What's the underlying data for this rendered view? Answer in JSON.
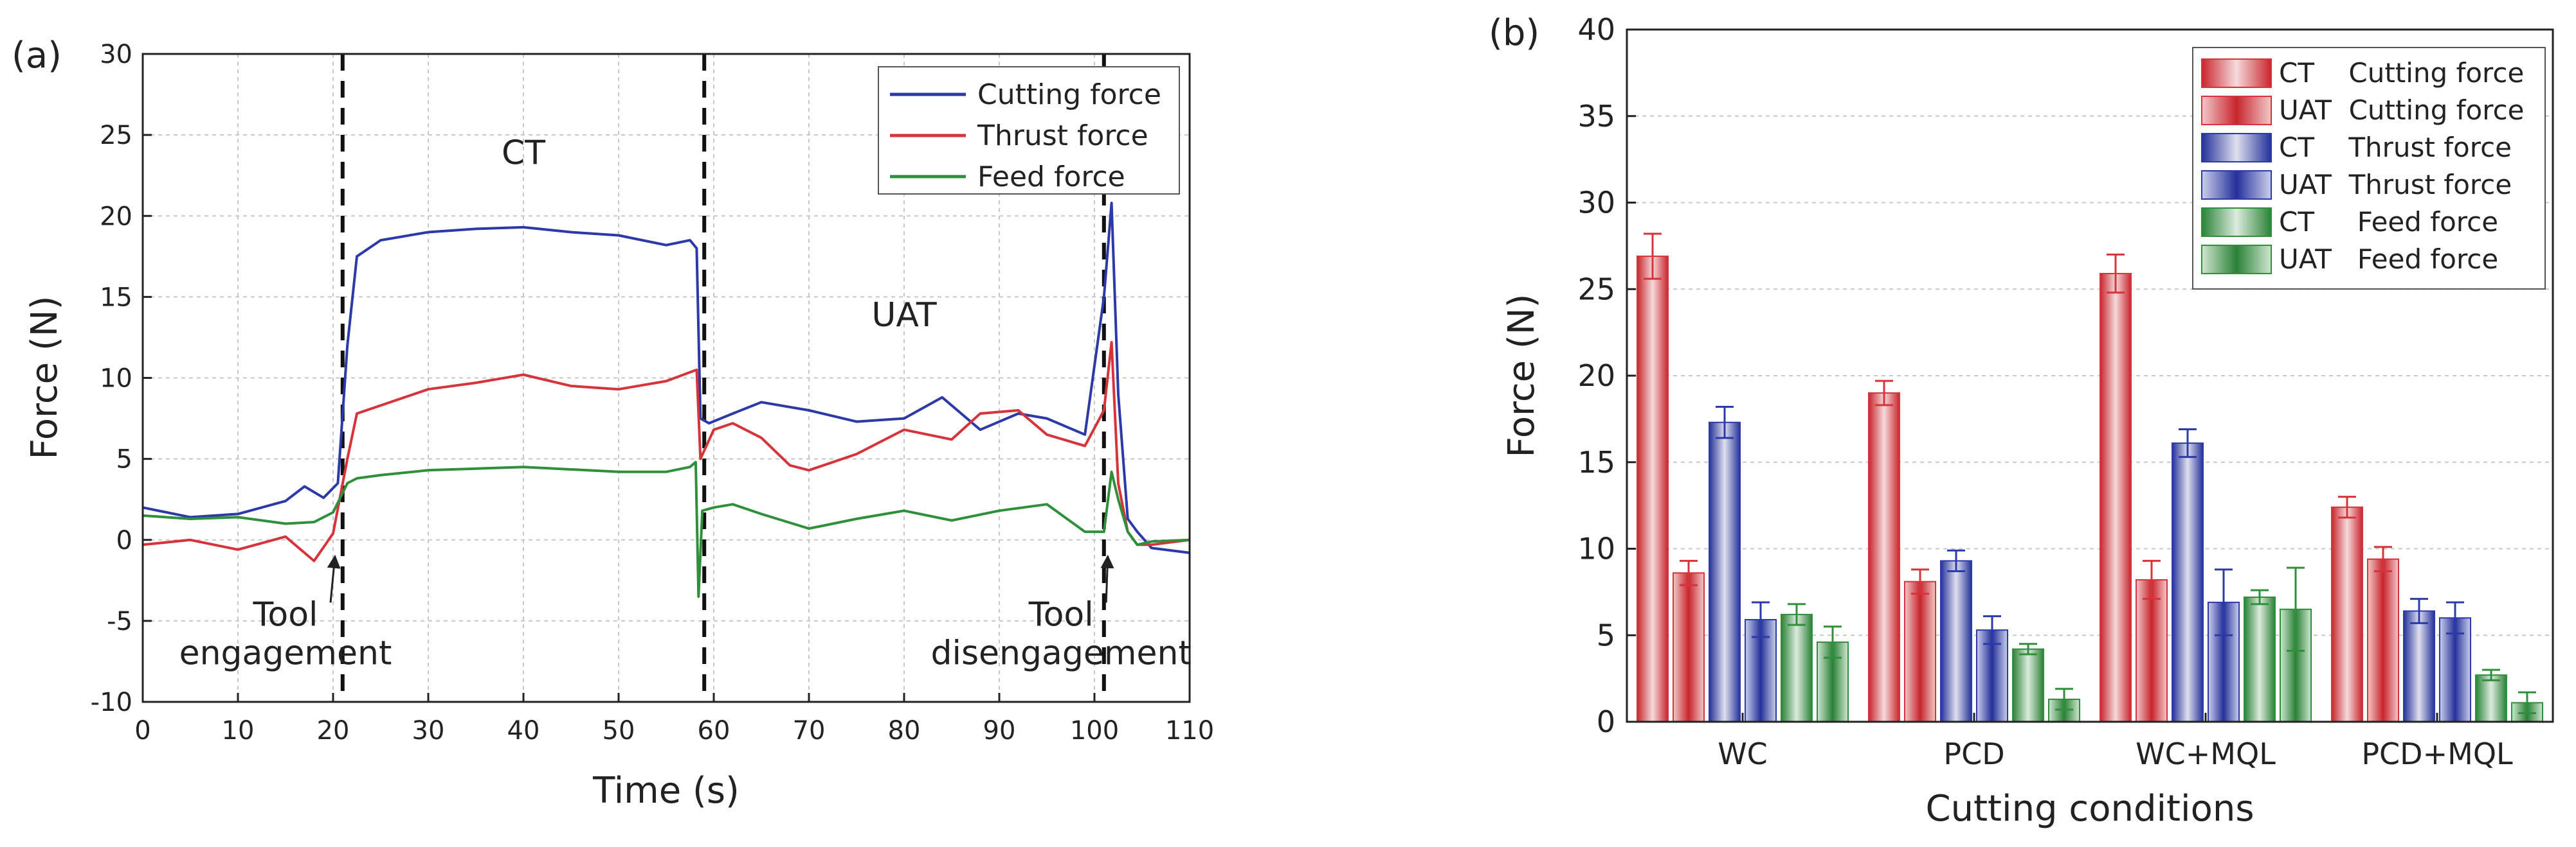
{
  "chart_data": [
    {
      "type": "line",
      "panel_label": "(a)",
      "xlabel": "Time (s)",
      "ylabel": "Force (N)",
      "xlim": [
        0,
        110
      ],
      "ylim": [
        -10,
        30
      ],
      "xticks": [
        0,
        10,
        20,
        30,
        40,
        50,
        60,
        70,
        80,
        90,
        100,
        110
      ],
      "yticks": [
        -10,
        -5,
        0,
        5,
        10,
        15,
        20,
        25,
        30
      ],
      "grid": true,
      "legend_position": "top-right",
      "series": [
        {
          "name": "Cutting force",
          "color": "#2b3aa8",
          "x": [
            0,
            5,
            10,
            15,
            17,
            19,
            20.5,
            21.5,
            22.5,
            25,
            30,
            35,
            40,
            45,
            50,
            55,
            57.5,
            58.2,
            58.6,
            59.5,
            62,
            65,
            70,
            75,
            80,
            84,
            88,
            92,
            95,
            99,
            101,
            101.8,
            102.5,
            103.5,
            104.5,
            106,
            110
          ],
          "y": [
            2,
            1.4,
            1.6,
            2.4,
            3.3,
            2.6,
            3.5,
            12,
            17.5,
            18.5,
            19,
            19.2,
            19.3,
            19,
            18.8,
            18.2,
            18.5,
            18,
            7.5,
            7.2,
            7.8,
            8.5,
            8,
            7.3,
            7.5,
            8.8,
            6.8,
            7.8,
            7.5,
            6.5,
            15,
            20.8,
            9,
            1.3,
            0.5,
            -0.5,
            -0.8
          ]
        },
        {
          "name": "Thrust force",
          "color": "#d6333a",
          "x": [
            0,
            5,
            10,
            15,
            18,
            20,
            21.5,
            22.5,
            25,
            30,
            35,
            40,
            45,
            50,
            55,
            58.2,
            58.6,
            60,
            62,
            65,
            68,
            70,
            75,
            80,
            85,
            88,
            92,
            95,
            99,
            101,
            101.8,
            102.5,
            103.5,
            104.5,
            106,
            110
          ],
          "y": [
            -0.3,
            0,
            -0.6,
            0.2,
            -1.3,
            0.4,
            5,
            7.8,
            8.3,
            9.3,
            9.7,
            10.2,
            9.5,
            9.3,
            9.8,
            10.5,
            5,
            6.8,
            7.2,
            6.3,
            4.6,
            4.3,
            5.3,
            6.8,
            6.2,
            7.8,
            8,
            6.5,
            5.8,
            8,
            12.2,
            3.5,
            0.5,
            -0.3,
            -0.3,
            0
          ]
        },
        {
          "name": "Feed force",
          "color": "#2f8f3a",
          "x": [
            0,
            5,
            10,
            15,
            18,
            20,
            21.5,
            22.5,
            25,
            30,
            40,
            50,
            55,
            57.5,
            58.1,
            58.4,
            58.8,
            60,
            62,
            65,
            70,
            75,
            80,
            85,
            90,
            95,
            99,
            101,
            101.8,
            102.5,
            103.5,
            104.5,
            106,
            110
          ],
          "y": [
            1.5,
            1.3,
            1.4,
            1,
            1.1,
            1.7,
            3.5,
            3.8,
            4,
            4.3,
            4.5,
            4.2,
            4.2,
            4.5,
            4.8,
            -3.5,
            1.8,
            2,
            2.2,
            1.6,
            0.7,
            1.3,
            1.8,
            1.2,
            1.8,
            2.2,
            0.5,
            0.5,
            4.2,
            2.5,
            0.5,
            -0.3,
            -0.1,
            0
          ]
        }
      ],
      "vlines": [
        21,
        59,
        101
      ],
      "annotations": [
        {
          "lines": [
            "CT"
          ],
          "x": 40,
          "y": 23.2
        },
        {
          "lines": [
            "UAT"
          ],
          "x": 80,
          "y": 13.2
        },
        {
          "lines": [
            "Tool",
            "engagement"
          ],
          "x": 15,
          "y": -5.3,
          "arrow_to": [
            20.2,
            -1
          ]
        },
        {
          "lines": [
            "Tool",
            "disengagement"
          ],
          "x": 96.5,
          "y": -5.3,
          "arrow_to": [
            101.4,
            -1
          ]
        }
      ]
    },
    {
      "type": "bar",
      "panel_label": "(b)",
      "xlabel": "Cutting conditions",
      "ylabel": "Force  (N)",
      "ylim": [
        0,
        40
      ],
      "yticks": [
        0,
        5,
        10,
        15,
        20,
        25,
        30,
        35,
        40
      ],
      "grid": true,
      "legend_position": "top-right",
      "categories": [
        "WC",
        "PCD",
        "WC+MQL",
        "PCD+MQL"
      ],
      "series": [
        {
          "name": "CT    Cutting force",
          "color": "#d6333a",
          "style": "ct",
          "values": [
            26.9,
            19,
            25.9,
            12.4
          ],
          "errors": [
            1.3,
            0.7,
            1.1,
            0.6
          ]
        },
        {
          "name": "UAT  Cutting force",
          "color": "#d6333a",
          "style": "uat",
          "values": [
            8.6,
            8.1,
            8.2,
            9.4
          ],
          "errors": [
            0.7,
            0.7,
            1.1,
            0.7
          ]
        },
        {
          "name": "CT    Thrust force",
          "color": "#2b3aa8",
          "style": "ct",
          "values": [
            17.3,
            9.3,
            16.1,
            6.4
          ],
          "errors": [
            0.9,
            0.6,
            0.8,
            0.7
          ]
        },
        {
          "name": "UAT  Thrust force",
          "color": "#2b3aa8",
          "style": "uat",
          "values": [
            5.9,
            5.3,
            6.9,
            6
          ],
          "errors": [
            1,
            0.8,
            1.9,
            0.9
          ]
        },
        {
          "name": "CT     Feed force",
          "color": "#2f8f3a",
          "style": "ct",
          "values": [
            6.2,
            4.2,
            7.2,
            2.7
          ],
          "errors": [
            0.6,
            0.3,
            0.4,
            0.3
          ]
        },
        {
          "name": "UAT   Feed force",
          "color": "#2f8f3a",
          "style": "uat",
          "values": [
            4.6,
            1.3,
            6.5,
            1.1
          ],
          "errors": [
            0.9,
            0.6,
            2.4,
            0.6
          ]
        }
      ]
    }
  ]
}
